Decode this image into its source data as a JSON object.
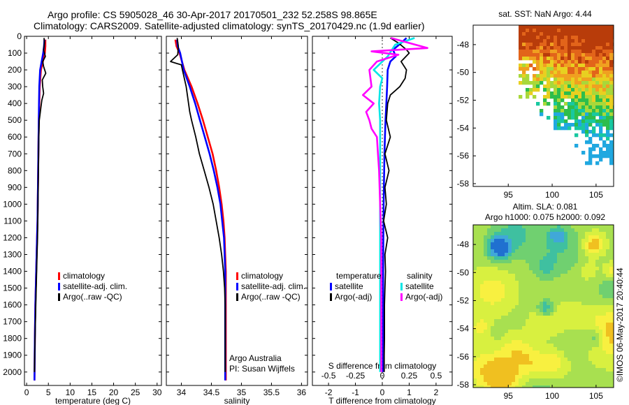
{
  "header": {
    "line1": "Argo profile: CS 5905028_46 30-Apr-2017 20170501_232 52.258S 98.865E",
    "line2": "Climatology: CARS2009. Satellite-adjusted climatology: synTS_20170429.nc (1.9d earlier)"
  },
  "colors": {
    "climatology": "#ff0000",
    "satellite": "#0000ff",
    "argo": "#000000",
    "sat_salinity_diff": "#00e6e6",
    "argo_salinity_diff": "#ff00ff"
  },
  "chart_data": [
    {
      "type": "line",
      "panel": "temperature",
      "xlabel": "temperature (deg C)",
      "ylabel": "",
      "xlim": [
        -0.5,
        31
      ],
      "ylim": [
        2080,
        0
      ],
      "xticks": [
        0,
        5,
        10,
        15,
        20,
        25,
        30
      ],
      "yticks": [
        0,
        100,
        200,
        300,
        400,
        500,
        600,
        700,
        800,
        900,
        1000,
        1100,
        1200,
        1300,
        1400,
        1500,
        1600,
        1700,
        1800,
        1900,
        2000
      ],
      "legend_items": [
        "climatology",
        "satellite-adj. clim.",
        "Argo(..raw -QC)"
      ],
      "series": [
        {
          "name": "climatology",
          "color": "#ff0000",
          "x": [
            4.3,
            4.3,
            4.2,
            3.3,
            3.0,
            2.9,
            2.8,
            2.75,
            2.7,
            2.65,
            2.6,
            2.55,
            2.5,
            2.4,
            2.3,
            2.2,
            2.1,
            2.0,
            1.9,
            1.8
          ],
          "y": [
            20,
            60,
            100,
            200,
            300,
            400,
            500,
            600,
            700,
            800,
            900,
            1000,
            1100,
            1200,
            1300,
            1400,
            1500,
            1600,
            1800,
            2050
          ]
        },
        {
          "name": "satellite-adj. clim.",
          "color": "#0000ff",
          "x": [
            4.1,
            4.0,
            3.8,
            3.1,
            2.9,
            2.85,
            2.8,
            2.75,
            2.7,
            2.65,
            2.6,
            2.55,
            2.5,
            2.4,
            2.3,
            2.2,
            2.1,
            2.0,
            1.9,
            1.8
          ],
          "y": [
            20,
            60,
            100,
            200,
            300,
            400,
            500,
            600,
            700,
            800,
            900,
            1000,
            1100,
            1200,
            1300,
            1400,
            1500,
            1600,
            1800,
            2050
          ]
        },
        {
          "name": "Argo(..raw -QC)",
          "color": "#000000",
          "x": [
            4.0,
            4.1,
            3.9,
            4.3,
            3.7,
            3.9,
            4.4,
            3.6,
            3.7,
            3.9,
            3.5,
            3.3,
            3.1,
            2.9,
            2.8,
            2.75,
            2.7,
            2.65,
            2.6,
            2.55,
            2.5,
            2.4,
            2.3,
            2.2,
            2.1,
            2.0,
            1.9,
            1.8
          ],
          "y": [
            10,
            40,
            80,
            120,
            150,
            180,
            220,
            260,
            300,
            340,
            380,
            420,
            460,
            500,
            600,
            700,
            800,
            900,
            1000,
            1100,
            1200,
            1300,
            1400,
            1500,
            1600,
            1700,
            1850,
            2000
          ]
        }
      ]
    },
    {
      "type": "line",
      "panel": "salinity",
      "xlabel": "salinity",
      "ylabel": "",
      "xlim": [
        33.75,
        36.1
      ],
      "ylim": [
        2080,
        0
      ],
      "xticks": [
        34,
        34.5,
        35,
        35.5,
        36
      ],
      "legend_items": [
        "climatology",
        "satellite-adj. clim.",
        "Argo(..raw -QC)"
      ],
      "annotation": [
        "Argo Australia",
        "PI: Susan Wijffels"
      ],
      "series": [
        {
          "name": "climatology",
          "color": "#ff0000",
          "x": [
            33.9,
            33.92,
            33.97,
            34.05,
            34.17,
            34.27,
            34.36,
            34.44,
            34.52,
            34.58,
            34.63,
            34.67,
            34.7,
            34.72,
            34.73,
            34.74,
            34.74,
            34.74,
            34.74,
            34.74
          ],
          "y": [
            20,
            60,
            100,
            200,
            300,
            400,
            500,
            600,
            700,
            800,
            900,
            1000,
            1100,
            1200,
            1300,
            1400,
            1500,
            1600,
            1800,
            2050
          ]
        },
        {
          "name": "satellite-adj. clim.",
          "color": "#0000ff",
          "x": [
            33.93,
            33.94,
            33.98,
            34.04,
            34.14,
            34.23,
            34.31,
            34.39,
            34.47,
            34.54,
            34.6,
            34.65,
            34.68,
            34.71,
            34.72,
            34.73,
            34.73,
            34.73,
            34.73,
            34.73
          ],
          "y": [
            20,
            60,
            100,
            200,
            300,
            400,
            500,
            600,
            700,
            800,
            900,
            1000,
            1100,
            1200,
            1300,
            1400,
            1500,
            1600,
            1800,
            2050
          ]
        },
        {
          "name": "Argo(..raw -QC)",
          "color": "#000000",
          "x": [
            33.93,
            33.95,
            33.94,
            33.82,
            34.0,
            34.03,
            34.08,
            34.12,
            34.14,
            34.17,
            34.24,
            34.3,
            34.38,
            34.46,
            34.53,
            34.58,
            34.63,
            34.67,
            34.7,
            34.72,
            34.73,
            34.73,
            34.73,
            34.73
          ],
          "y": [
            10,
            60,
            110,
            150,
            170,
            220,
            300,
            400,
            450,
            500,
            600,
            700,
            800,
            900,
            1000,
            1100,
            1200,
            1300,
            1400,
            1500,
            1600,
            1700,
            1850,
            2000
          ]
        }
      ]
    },
    {
      "type": "line",
      "panel": "differences",
      "xlabel": "T difference from climatology",
      "xlabel_top": "S difference from climatology",
      "xlim": [
        -2.6,
        2.6
      ],
      "ylim": [
        2080,
        0
      ],
      "xticks": [
        -2,
        -1,
        0,
        1,
        2
      ],
      "xticks_s": [
        -0.5,
        -0.25,
        0,
        0.25,
        0.5
      ],
      "legend_headers": [
        "temperature",
        "salinity"
      ],
      "legend_items": [
        "satellite",
        "Argo(-adj)",
        "satellite",
        "Argo(-adj)"
      ],
      "series": [
        {
          "name": "satellite",
          "group": "temperature",
          "color": "#0000ff",
          "x": [
            0.9,
            0.7,
            0.4,
            0.5,
            0.3,
            0.2,
            0.18,
            0.15,
            0.12,
            0.1,
            0.08,
            0.07,
            0.06,
            0.05,
            0.04,
            0.03,
            0.03,
            0.03,
            0.03,
            0.03,
            0.03
          ],
          "y": [
            10,
            40,
            80,
            120,
            150,
            200,
            300,
            400,
            500,
            600,
            700,
            800,
            900,
            1000,
            1200,
            1400,
            1600,
            1800,
            1900,
            1950,
            2000
          ]
        },
        {
          "name": "Argo(-adj)",
          "group": "temperature",
          "color": "#000000",
          "x": [
            0.3,
            0.6,
            0.9,
            1.0,
            0.7,
            0.9,
            0.85,
            0.65,
            0.3,
            0.2,
            0.15,
            0.3,
            0.1,
            0.25,
            0.1,
            0.15,
            0.05,
            0.2,
            0.1,
            0.12,
            0.1,
            0.08,
            0.08,
            0.07,
            0.07
          ],
          "y": [
            10,
            40,
            80,
            100,
            150,
            200,
            250,
            300,
            350,
            400,
            500,
            600,
            700,
            800,
            900,
            1000,
            1100,
            1200,
            1300,
            1400,
            1500,
            1600,
            1800,
            1900,
            2000
          ]
        },
        {
          "name": "satellite",
          "group": "salinity",
          "color": "#00e6e6",
          "x": [
            0.3,
            0.12,
            0.05,
            -0.08,
            0.0,
            -0.02,
            -0.03,
            -0.02,
            -0.02,
            -0.02,
            -0.02,
            -0.02,
            -0.02,
            -0.02,
            -0.02,
            -0.02,
            -0.02,
            -0.02,
            -0.02
          ],
          "y": [
            10,
            50,
            120,
            200,
            250,
            300,
            400,
            500,
            600,
            700,
            800,
            900,
            1000,
            1200,
            1400,
            1600,
            1800,
            1900,
            2000
          ]
        },
        {
          "name": "Argo(-adj)",
          "group": "salinity",
          "color": "#ff00ff",
          "x": [
            0.08,
            0.42,
            -0.1,
            0.15,
            -0.05,
            -0.12,
            -0.1,
            -0.18,
            -0.08,
            -0.15,
            -0.12,
            -0.1,
            -0.05,
            -0.04,
            -0.03,
            -0.02,
            -0.01,
            -0.01,
            -0.01,
            -0.01,
            -0.01
          ],
          "y": [
            10,
            70,
            90,
            110,
            150,
            200,
            300,
            350,
            400,
            450,
            500,
            550,
            600,
            700,
            800,
            1000,
            1200,
            1400,
            1600,
            1800,
            2000
          ]
        }
      ]
    },
    {
      "type": "heatmap",
      "panel": "sat-sst-map",
      "title": "sat. SST: NaN Argo: 4.44",
      "xlim": [
        91,
        107
      ],
      "ylim": [
        -58.2,
        -46.6
      ],
      "xticks": [
        95,
        100,
        105
      ],
      "yticks": [
        -48,
        -50,
        -52,
        -54,
        -56,
        -58
      ]
    },
    {
      "type": "heatmap",
      "panel": "altimetry-map",
      "title": [
        "Altim. SLA: 0.081",
        "Argo h1000: 0.075 h2000: 0.092"
      ],
      "xlim": [
        91,
        107
      ],
      "ylim": [
        -58.2,
        -46.6
      ],
      "xticks": [
        95,
        100,
        105
      ],
      "yticks": [
        -48,
        -50,
        -52,
        -54,
        -56,
        -58
      ]
    }
  ],
  "watermark": "©IMOS 06-May-2017 20:40:44"
}
